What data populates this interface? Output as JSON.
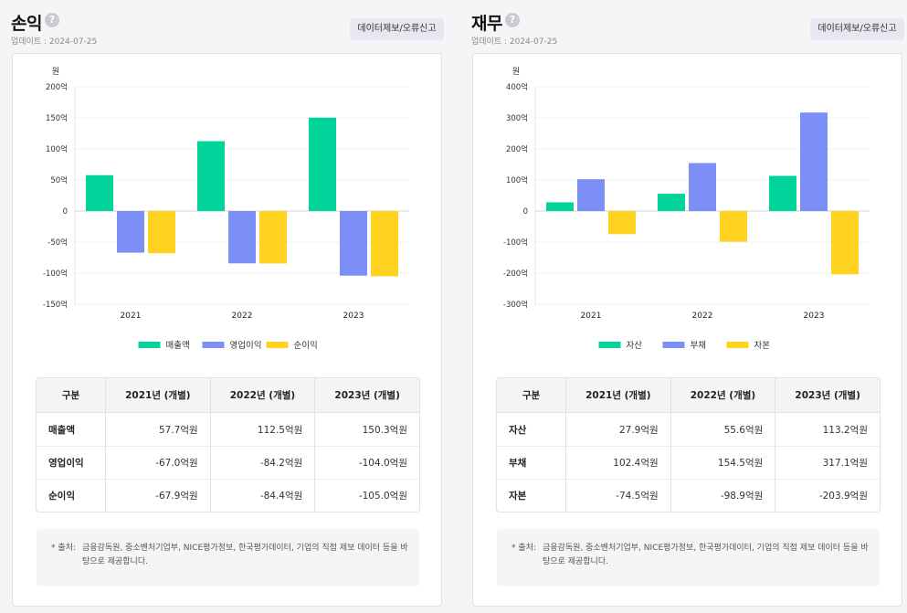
{
  "panels": [
    {
      "title": "손익",
      "help": "?",
      "updated": "업데이트 : 2024-07-25",
      "report_button": "데이터제보/오류신고",
      "chart_data": {
        "type": "bar",
        "unit": "원",
        "categories": [
          "2021",
          "2022",
          "2023"
        ],
        "series": [
          {
            "name": "매출액",
            "values": [
              57.7,
              112.5,
              150.3
            ],
            "color": "#00d49b"
          },
          {
            "name": "영업이익",
            "values": [
              -67.0,
              -84.2,
              -104.0
            ],
            "color": "#7b8ff6"
          },
          {
            "name": "순이익",
            "values": [
              -67.9,
              -84.4,
              -105.0
            ],
            "color": "#ffd21f"
          }
        ],
        "ylim": [
          -150,
          200
        ],
        "yticks": [
          200,
          150,
          100,
          50,
          0,
          -50,
          -100,
          -150
        ],
        "ytick_labels": [
          "200억",
          "150억",
          "100억",
          "50억",
          "0",
          "-50억",
          "-100억",
          "-150억"
        ],
        "legend": "bottom",
        "grid": true
      },
      "table": {
        "headers": [
          "구분",
          "2021년 (개별)",
          "2022년 (개별)",
          "2023년 (개별)"
        ],
        "rows": [
          {
            "label": "매출액",
            "values": [
              "57.7억원",
              "112.5억원",
              "150.3억원"
            ]
          },
          {
            "label": "영업이익",
            "values": [
              "-67.0억원",
              "-84.2억원",
              "-104.0억원"
            ]
          },
          {
            "label": "순이익",
            "values": [
              "-67.9억원",
              "-84.4억원",
              "-105.0억원"
            ]
          }
        ]
      },
      "source_label": "* 출처:",
      "source_text": "금융감독원, 중소벤처기업부, NICE평가정보, 한국평가데이터, 기업의 직접 제보 데이터 등을 바탕으로 제공합니다."
    },
    {
      "title": "재무",
      "help": "?",
      "updated": "업데이트 : 2024-07-25",
      "report_button": "데이터제보/오류신고",
      "chart_data": {
        "type": "bar",
        "unit": "원",
        "categories": [
          "2021",
          "2022",
          "2023"
        ],
        "series": [
          {
            "name": "자산",
            "values": [
              27.9,
              55.6,
              113.2
            ],
            "color": "#00d49b"
          },
          {
            "name": "부채",
            "values": [
              102.4,
              154.5,
              317.1
            ],
            "color": "#7b8ff6"
          },
          {
            "name": "자본",
            "values": [
              -74.5,
              -98.9,
              -203.9
            ],
            "color": "#ffd21f"
          }
        ],
        "ylim": [
          -300,
          400
        ],
        "yticks": [
          400,
          300,
          200,
          100,
          0,
          -100,
          -200,
          -300
        ],
        "ytick_labels": [
          "400억",
          "300억",
          "200억",
          "100억",
          "0",
          "-100억",
          "-200억",
          "-300억"
        ],
        "legend": "bottom",
        "grid": true
      },
      "table": {
        "headers": [
          "구분",
          "2021년 (개별)",
          "2022년 (개별)",
          "2023년 (개별)"
        ],
        "rows": [
          {
            "label": "자산",
            "values": [
              "27.9억원",
              "55.6억원",
              "113.2억원"
            ]
          },
          {
            "label": "부채",
            "values": [
              "102.4억원",
              "154.5억원",
              "317.1억원"
            ]
          },
          {
            "label": "자본",
            "values": [
              "-74.5억원",
              "-98.9억원",
              "-203.9억원"
            ]
          }
        ]
      },
      "source_label": "* 출처:",
      "source_text": "금융감독원, 중소벤처기업부, NICE평가정보, 한국평가데이터, 기업의 직접 제보 데이터 등을 바탕으로 제공합니다."
    }
  ]
}
